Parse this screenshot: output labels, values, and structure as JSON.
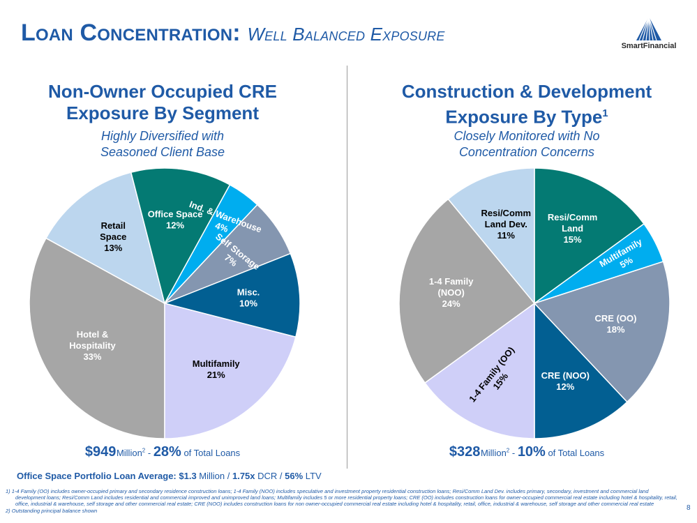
{
  "header": {
    "title_main": "Loan Concentration:",
    "title_sub": "Well Balanced Exposure",
    "logo_text": "SmartFinancial"
  },
  "colors": {
    "accent": "#1f5aa6",
    "hotel": "#a6a6a6",
    "retail": "#bcd6ee",
    "office": "#047a73",
    "industrial": "#00adef",
    "storage": "#8496b0",
    "misc": "#025f92",
    "multifamily_left": "#cfcff8"
  },
  "chart_data": [
    {
      "type": "pie",
      "title_line1": "Non-Owner Occupied CRE",
      "title_line2": "Exposure By Segment",
      "subtitle_line1": "Highly Diversified with",
      "subtitle_line2": "Seasoned Client Base",
      "start_angle": 180,
      "direction": "clockwise",
      "slices": [
        {
          "label": "Hotel &|Hospitality",
          "value": 33,
          "pct": "33%",
          "color": "#a6a6a6",
          "text_color": "#ffffff",
          "rotate": 0
        },
        {
          "label": "Retail|Space",
          "value": 13,
          "pct": "13%",
          "color": "#bcd6ee",
          "text_color": "#000000",
          "rotate": 0
        },
        {
          "label": "Office Space",
          "value": 12,
          "pct": "12%",
          "color": "#047a73",
          "text_color": "#ffffff",
          "rotate": 0
        },
        {
          "label": "Ind. & Warehouse",
          "value": 4,
          "pct": "4%",
          "color": "#00adef",
          "text_color": "#ffffff",
          "rotate": 20
        },
        {
          "label": "Self Storage",
          "value": 7,
          "pct": "7%",
          "color": "#8496b0",
          "text_color": "#ffffff",
          "rotate": 38
        },
        {
          "label": "Misc.",
          "value": 10,
          "pct": "10%",
          "color": "#025f92",
          "text_color": "#ffffff",
          "rotate": 0
        },
        {
          "label": "Multifamily",
          "value": 21,
          "pct": "21%",
          "color": "#cfcff8",
          "text_color": "#000000",
          "rotate": 0
        }
      ],
      "total_amount": "$949",
      "total_unit": "Million",
      "total_sup": "2",
      "total_sep": " - ",
      "total_pct": "28%",
      "total_suffix": " of Total Loans"
    },
    {
      "type": "pie",
      "title_line1": "Construction & Development",
      "title_line2": "Exposure By Type",
      "title_sup": "1",
      "subtitle_line1": "Closely Monitored with No",
      "subtitle_line2": "Concentration Concerns",
      "start_angle": 0,
      "direction": "clockwise",
      "slices": [
        {
          "label": "Resi/Comm|Land",
          "value": 15,
          "pct": "15%",
          "color": "#047a73",
          "text_color": "#ffffff",
          "rotate": 0
        },
        {
          "label": "Multifamily",
          "value": 5,
          "pct": "5%",
          "color": "#00adef",
          "text_color": "#ffffff",
          "rotate": -30
        },
        {
          "label": "CRE (OO)",
          "value": 18,
          "pct": "18%",
          "color": "#8496b0",
          "text_color": "#ffffff",
          "rotate": 0
        },
        {
          "label": "CRE (NOO)",
          "value": 12,
          "pct": "12%",
          "color": "#025f92",
          "text_color": "#ffffff",
          "rotate": 0
        },
        {
          "label": "1-4 Family (OO)",
          "value": 15,
          "pct": "15%",
          "color": "#cfcff8",
          "text_color": "#000000",
          "rotate": -52
        },
        {
          "label": "1-4 Family|(NOO)",
          "value": 24,
          "pct": "24%",
          "color": "#a6a6a6",
          "text_color": "#ffffff",
          "rotate": 0
        },
        {
          "label": "Resi/Comm|Land Dev.",
          "value": 11,
          "pct": "11%",
          "color": "#bcd6ee",
          "text_color": "#000000",
          "rotate": 0
        }
      ],
      "total_amount": "$328",
      "total_unit": "Million",
      "total_sup": "2",
      "total_sep": " - ",
      "total_pct": "10%",
      "total_suffix": " of Total Loans"
    }
  ],
  "office_line": {
    "label": "Office Space Portfolio Loan Average: ",
    "avg": "$1.3",
    "avg_unit": " Million / ",
    "dcr": "1.75x",
    "dcr_unit": " DCR / ",
    "ltv": "56%",
    "ltv_unit": " LTV"
  },
  "footnotes": [
    "1)  1-4 Family (OO) includes owner-occupied primary and secondary residence construction loans; 1-4 Family (NOO) includes speculative and investment property residential construction loans; Resi/Comm Land Dev. includes primary, secondary, investment and commercial land development loans; Resi/Comm Land includes residential and commercial improved and unimproved  land loans; Multifamily includes 5 or more residential property loans; CRE (OO) includes construction loans for owner-occupied commercial real estate including hotel & hospitality, retail, office, industrial & warehouse, self storage and other commercial real estate; CRE (NOO) includes construction loans for non owner-occupied commercial real estate including hotel & hospitality, retail, office, industrial & warehouse, self storage and other commercial real estate",
    "2)  Outstanding principal balance shown"
  ],
  "page_number": "8"
}
